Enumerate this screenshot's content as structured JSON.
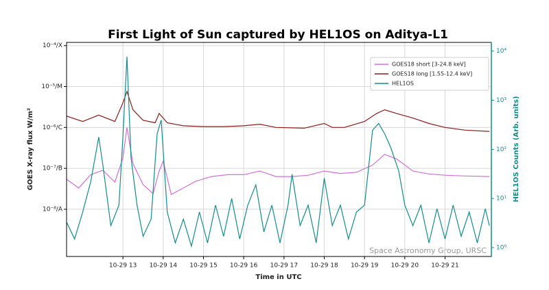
{
  "chart_data": {
    "type": "line",
    "title": "First Light of Sun captured by HEL1OS on Aditya-L1",
    "xlabel": "Time in UTC",
    "ylabel": "GOES X-ray flux W/m²",
    "y2label": "HEL1OS Counts (Arb. units)",
    "annotation": "Space Astronomy Group, URSC",
    "xlim": [
      11.6,
      22.15
    ],
    "xticks": [
      {
        "value": 13,
        "label": "10-29 13"
      },
      {
        "value": 14,
        "label": "10-29 14"
      },
      {
        "value": 15,
        "label": "10-29 15"
      },
      {
        "value": 16,
        "label": "10-29 16"
      },
      {
        "value": 17,
        "label": "10-29 17"
      },
      {
        "value": 18,
        "label": "10-29 18"
      },
      {
        "value": 19,
        "label": "10-29 19"
      },
      {
        "value": 20,
        "label": "10-29 20"
      },
      {
        "value": 21,
        "label": "10-29 21"
      }
    ],
    "ylim": [
      7e-10,
      0.00012
    ],
    "yticks": [
      {
        "value": 1e-08,
        "label": "10⁻⁸/A"
      },
      {
        "value": 1e-07,
        "label": "10⁻⁷/B"
      },
      {
        "value": 1e-06,
        "label": "10⁻⁶/C"
      },
      {
        "value": 1e-05,
        "label": "10⁻⁵/M"
      },
      {
        "value": 0.0001,
        "label": "10⁻⁴/X"
      }
    ],
    "y2lim": [
      0.66,
      15000
    ],
    "y2ticks": [
      {
        "value": 1,
        "label": "10⁰"
      },
      {
        "value": 10,
        "label": "10¹"
      },
      {
        "value": 100,
        "label": "10²"
      },
      {
        "value": 1000,
        "label": "10³"
      },
      {
        "value": 10000,
        "label": "10⁴"
      }
    ],
    "log_scale": true,
    "grid": true,
    "legend": "upper right",
    "series": [
      {
        "name": "GOES18 short [3-24.8 keV]",
        "color": "#d070d8",
        "x": [
          11.6,
          11.9,
          12.2,
          12.5,
          12.8,
          13.0,
          13.1,
          13.25,
          13.5,
          13.75,
          13.9,
          14.0,
          14.2,
          14.5,
          14.8,
          15.2,
          15.6,
          16.0,
          16.4,
          16.8,
          17.2,
          17.6,
          18.0,
          18.4,
          18.8,
          19.2,
          19.5,
          19.8,
          20.2,
          20.6,
          21.0,
          21.5,
          22.1
        ],
        "values": [
          5.4e-08,
          3.3e-08,
          7e-08,
          9e-08,
          4.6e-08,
          1.8e-07,
          1e-06,
          1.3e-07,
          4e-08,
          2.4e-08,
          8.6e-08,
          1.5e-07,
          2.3e-08,
          3.3e-08,
          4.8e-08,
          6.3e-08,
          7e-08,
          7e-08,
          8.6e-08,
          6.3e-08,
          6.3e-08,
          6.8e-08,
          8.6e-08,
          7.5e-08,
          8e-08,
          1.2e-07,
          2.2e-07,
          1.7e-07,
          8.6e-08,
          7.3e-08,
          6.8e-08,
          6.5e-08,
          6.3e-08
        ]
      },
      {
        "name": "GOES18 long [1.55-12.4 keV]",
        "color": "#8b1a1a",
        "x": [
          11.6,
          12.0,
          12.4,
          12.8,
          13.0,
          13.1,
          13.25,
          13.5,
          13.8,
          13.9,
          14.1,
          14.5,
          15.0,
          15.5,
          16.0,
          16.4,
          16.8,
          17.5,
          18.0,
          18.2,
          18.5,
          19.0,
          19.3,
          19.5,
          19.8,
          20.2,
          20.6,
          21.0,
          21.5,
          22.1
        ],
        "values": [
          1.9e-06,
          1.4e-06,
          2e-06,
          1.4e-06,
          4e-06,
          7.6e-06,
          2.7e-06,
          1.5e-06,
          1.3e-06,
          2.2e-06,
          1.3e-06,
          1.1e-06,
          1.05e-06,
          1.05e-06,
          1.1e-06,
          1.2e-06,
          1e-06,
          9.6e-07,
          1.25e-06,
          1e-06,
          1e-06,
          1.4e-06,
          2.2e-06,
          2.7e-06,
          2.2e-06,
          1.7e-06,
          1.25e-06,
          1e-06,
          8.6e-07,
          8e-07
        ]
      },
      {
        "name": "HEL1OS",
        "color": "#148c8c",
        "axis": "y2",
        "x": [
          11.6,
          11.8,
          12.0,
          12.2,
          12.4,
          12.5,
          12.7,
          12.9,
          13.0,
          13.1,
          13.2,
          13.35,
          13.5,
          13.7,
          13.85,
          13.95,
          14.1,
          14.3,
          14.5,
          14.7,
          14.9,
          15.1,
          15.3,
          15.5,
          15.7,
          15.9,
          16.1,
          16.3,
          16.5,
          16.7,
          16.9,
          17.1,
          17.2,
          17.4,
          17.6,
          17.8,
          18.0,
          18.2,
          18.4,
          18.6,
          18.8,
          19.0,
          19.2,
          19.35,
          19.5,
          19.65,
          19.85,
          20.0,
          20.2,
          20.4,
          20.6,
          20.8,
          21.0,
          21.2,
          21.4,
          21.6,
          21.8,
          22.0,
          22.1
        ],
        "values": [
          3.3,
          1.5,
          5.3,
          22,
          178,
          49,
          2.8,
          7.3,
          178,
          7700,
          68,
          7.3,
          1.7,
          3.8,
          208,
          395,
          5.3,
          1.25,
          3.8,
          1.07,
          5.3,
          1.25,
          7.3,
          1.7,
          10,
          1.5,
          7.3,
          19,
          2.1,
          7.3,
          1.25,
          7.3,
          31,
          2.8,
          7.3,
          1.25,
          26,
          2.8,
          7.3,
          1.5,
          5.3,
          7.3,
          245,
          337,
          208,
          110,
          36,
          7.3,
          2.8,
          7.3,
          1.25,
          6.2,
          1.5,
          7.3,
          1.7,
          5.3,
          1.25,
          6.2,
          2.8
        ]
      }
    ]
  }
}
